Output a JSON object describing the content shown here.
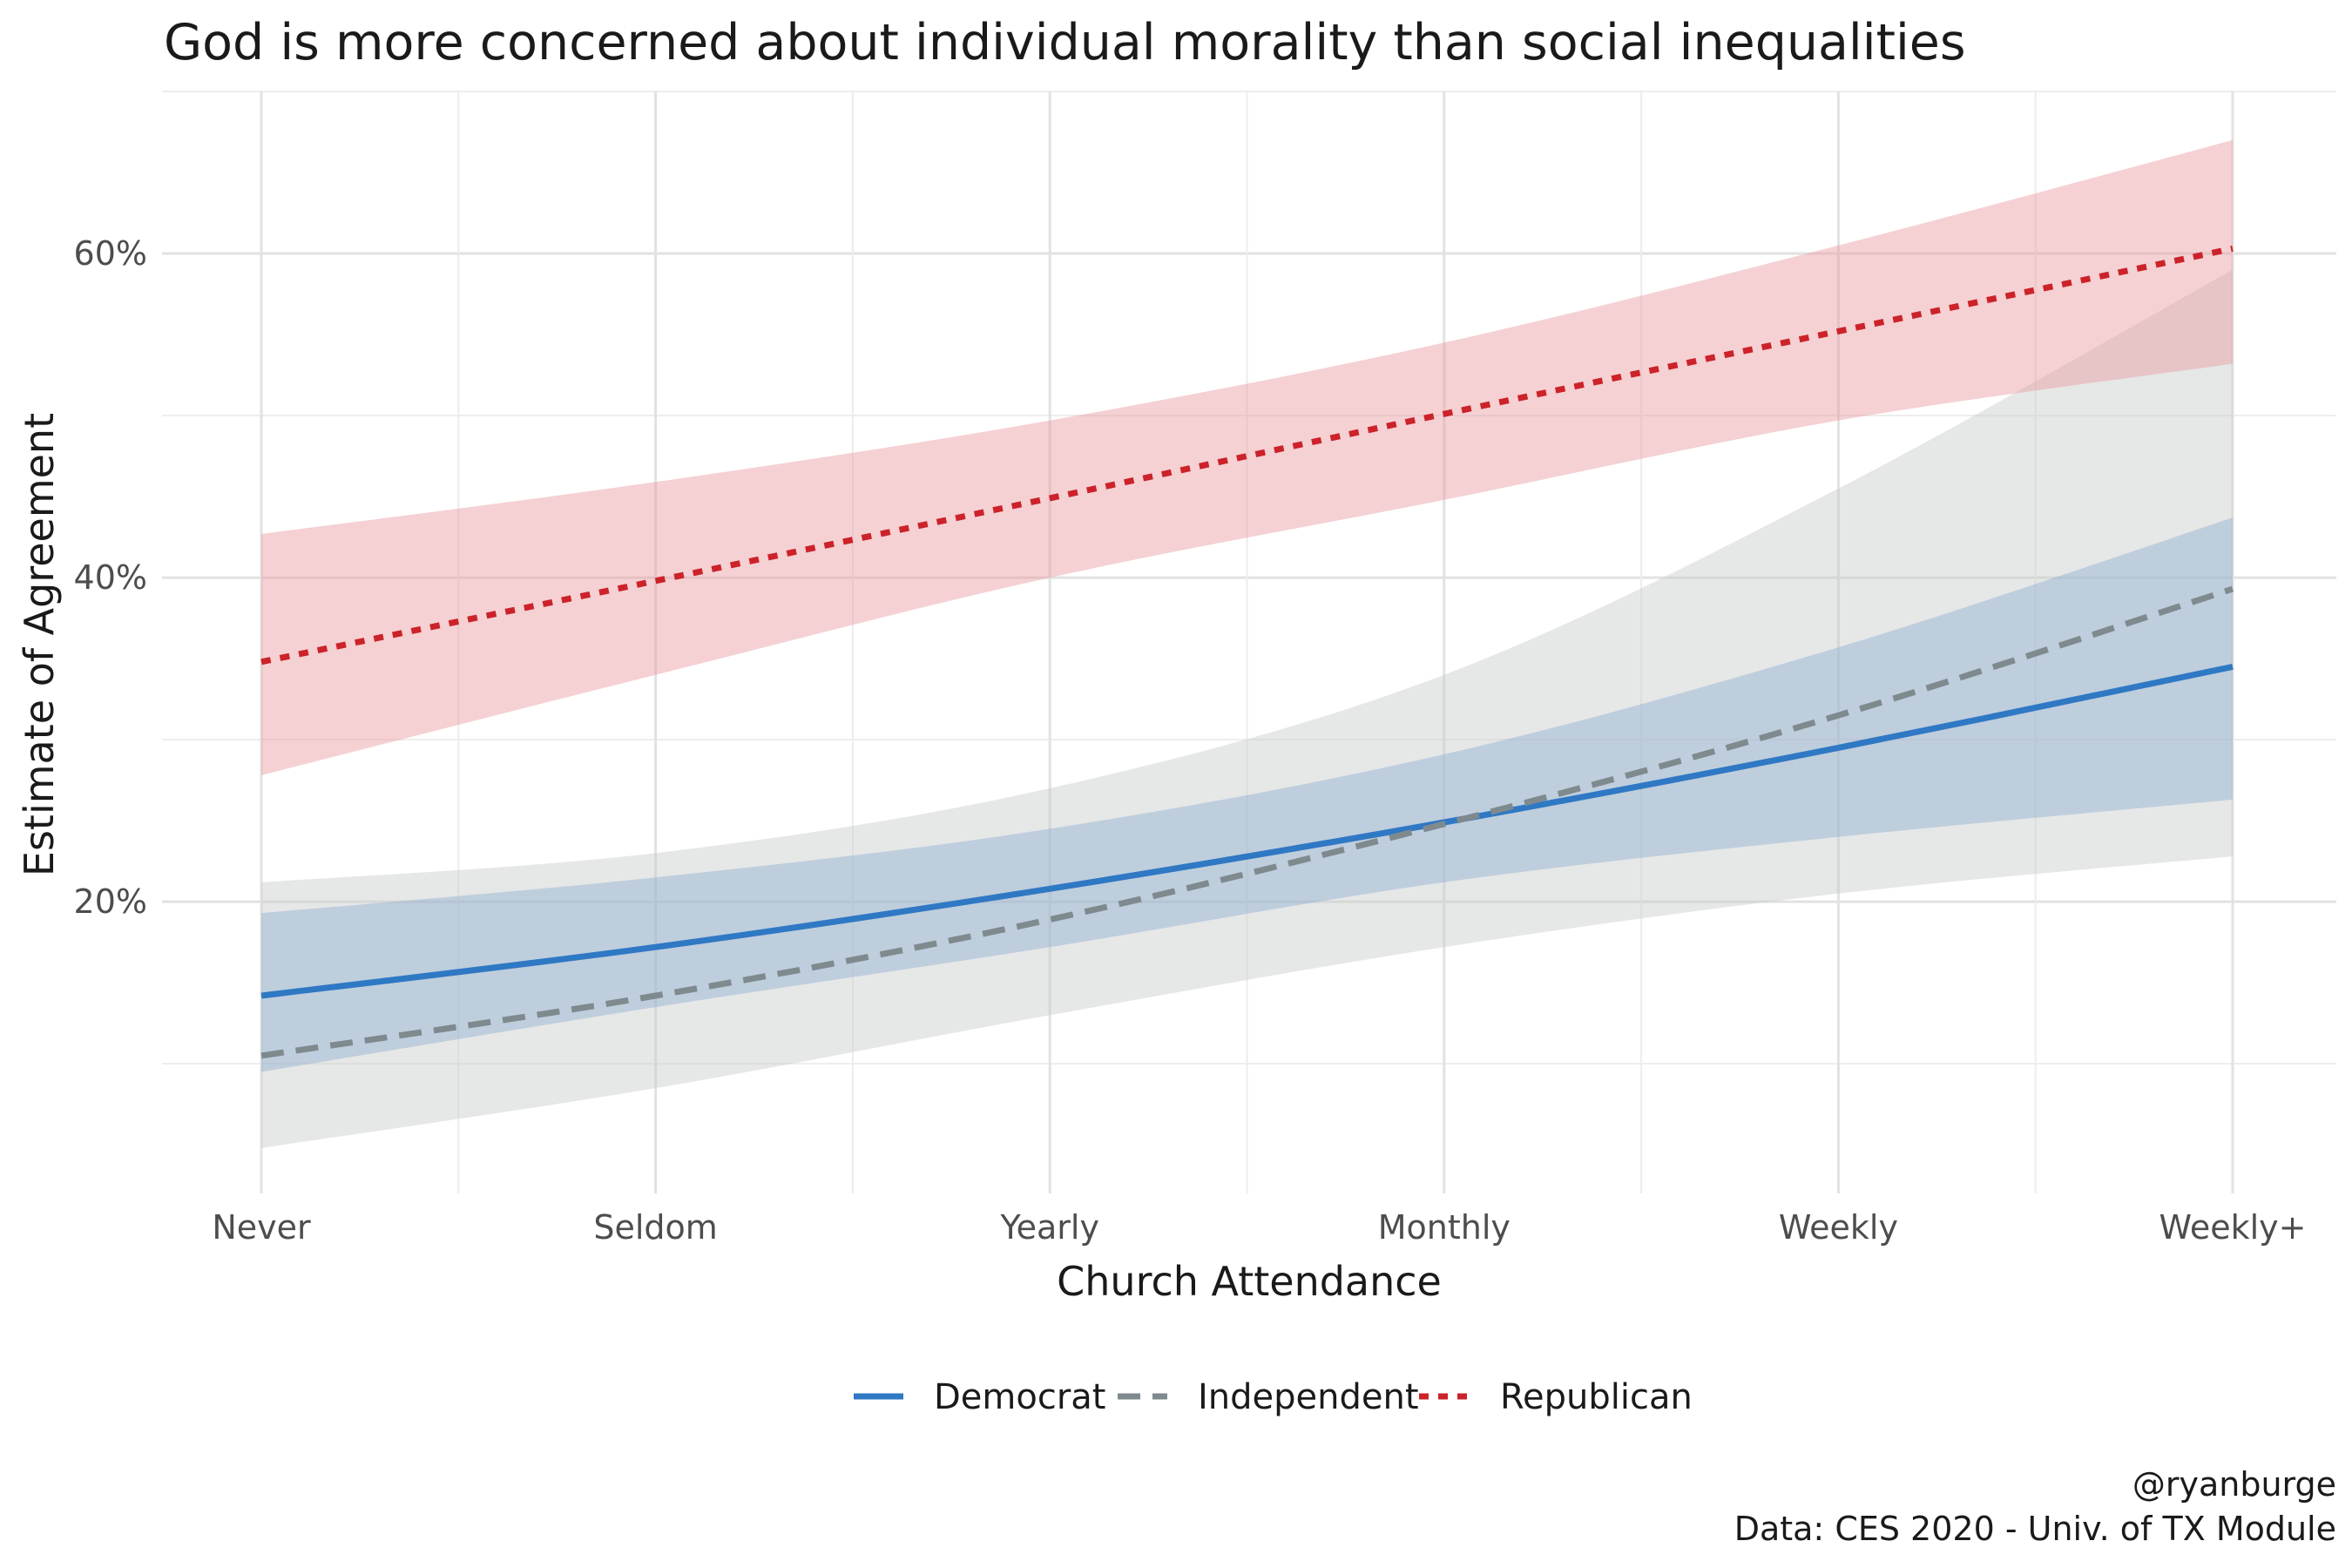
{
  "chart_data": {
    "type": "line",
    "title": "God is more concerned about individual morality than social inequalities",
    "xlabel": "Church Attendance",
    "ylabel": "Estimate of Agreement",
    "categories": [
      "Never",
      "Seldom",
      "Yearly",
      "Monthly",
      "Weekly",
      "Weekly+"
    ],
    "x": [
      1,
      2,
      3,
      4,
      5,
      6
    ],
    "ylim": [
      0.02,
      0.7
    ],
    "yticks": [
      0.2,
      0.4,
      0.6
    ],
    "ytick_labels": [
      "20%",
      "40%",
      "60%"
    ],
    "grid": true,
    "legend_position": "bottom",
    "series": [
      {
        "name": "Democrat",
        "color": "#2f78c4",
        "band_color": "#8fb0d0",
        "line_style": "solid",
        "values": [
          0.142,
          0.172,
          0.208,
          0.249,
          0.295,
          0.345
        ],
        "lower": [
          0.095,
          0.135,
          0.172,
          0.212,
          0.24,
          0.263
        ],
        "upper": [
          0.193,
          0.215,
          0.245,
          0.291,
          0.357,
          0.437
        ]
      },
      {
        "name": "Independent",
        "color": "#7f8a8e",
        "band_color": "#c8caca",
        "line_style": "dashed",
        "values": [
          0.105,
          0.142,
          0.189,
          0.248,
          0.315,
          0.393
        ],
        "lower": [
          0.048,
          0.085,
          0.13,
          0.172,
          0.205,
          0.228
        ],
        "upper": [
          0.212,
          0.23,
          0.27,
          0.34,
          0.455,
          0.59
        ]
      },
      {
        "name": "Republican",
        "color": "#cc2229",
        "band_color": "#e89a9e",
        "line_style": "dotted",
        "values": [
          0.348,
          0.398,
          0.449,
          0.501,
          0.552,
          0.603
        ],
        "lower": [
          0.278,
          0.34,
          0.4,
          0.448,
          0.497,
          0.532
        ],
        "upper": [
          0.427,
          0.459,
          0.497,
          0.545,
          0.605,
          0.67
        ]
      }
    ]
  },
  "caption": {
    "line1": "@ryanburge",
    "line2": "Data: CES 2020 - Univ. of TX Module"
  }
}
